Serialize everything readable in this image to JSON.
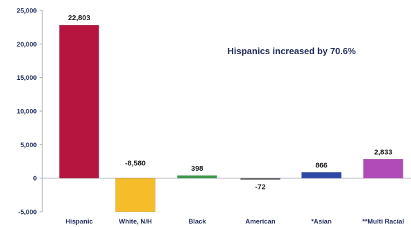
{
  "chart_data": {
    "type": "bar",
    "title": "",
    "xlabel": "",
    "ylabel": "",
    "annotation": "Hispanics increased by 70.6%",
    "categories": [
      "Hispanic",
      "White, N/H",
      "Black",
      "American",
      "*Asian",
      "**Multi Racial"
    ],
    "values": [
      22803,
      -8580,
      398,
      -72,
      866,
      2833
    ],
    "data_labels": [
      "22,803",
      "-8,580",
      "398",
      "-72",
      "866",
      "2,833"
    ],
    "colors": [
      "#b5153f",
      "#f6bd2b",
      "#3b9a4a",
      "#6a6a6a",
      "#2e4aa8",
      "#b04bb8"
    ],
    "ylim": [
      -5000,
      25000
    ],
    "yticks": [
      -5000,
      0,
      5000,
      10000,
      15000,
      20000,
      25000
    ],
    "ytick_labels": [
      "-5,000",
      "0",
      "5,000",
      "10,000",
      "15,000",
      "20,000",
      "25,000"
    ],
    "grid": false,
    "legend": "none"
  }
}
